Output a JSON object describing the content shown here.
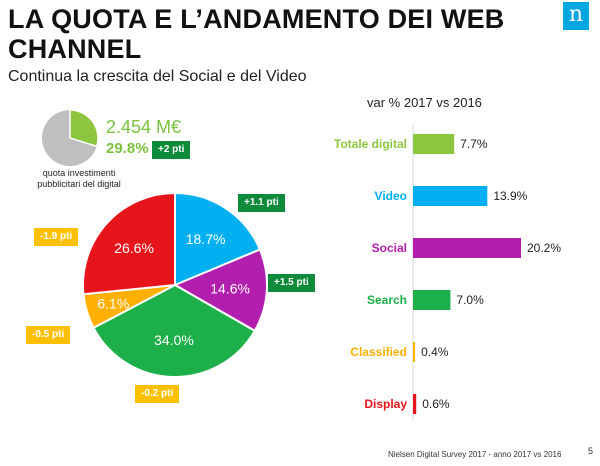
{
  "header": {
    "title": "LA QUOTA E L’ANDAMENTO DEI WEB CHANNEL",
    "subtitle": "Continua la crescita del Social e del Video",
    "logo_glyph": "n"
  },
  "digital_share": {
    "total_value": "2.454 M€",
    "share": "29.8%",
    "share_change": "+2 pti",
    "caption": "quota investimenti pubblicitari del digital",
    "share_fraction": 0.298,
    "colors": {
      "digital": "#8cc63f",
      "rest": "#bfbfbf"
    }
  },
  "footer": {
    "source": "Nielsen Digital Survey 2017 - anno 2017 vs 2016",
    "page": "5"
  },
  "chart_data": [
    {
      "type": "pie",
      "title": "",
      "slices": [
        {
          "name": "Video",
          "value": 18.7,
          "label": "18.7%",
          "change": "+1.1 pti",
          "color": "#00b0f0",
          "change_color": "green"
        },
        {
          "name": "Social",
          "value": 14.6,
          "label": "14.6%",
          "change": "+1.5 pti",
          "color": "#b21fae",
          "change_color": "green"
        },
        {
          "name": "Search",
          "value": 34.0,
          "label": "34.0%",
          "change": "-0.2 pti",
          "color": "#1daf49",
          "change_color": "orange"
        },
        {
          "name": "Classified",
          "value": 6.1,
          "label": "6.1%",
          "change": "-0.5 pti",
          "color": "#ffb000",
          "change_color": "orange"
        },
        {
          "name": "Display",
          "value": 26.6,
          "label": "26.6%",
          "change": "-1.9 pti",
          "color": "#e8141b",
          "change_color": "orange"
        }
      ]
    },
    {
      "type": "bar",
      "orientation": "horizontal",
      "title": "var % 2017 vs 2016",
      "categories": [
        "Totale digital",
        "Video",
        "Social",
        "Search",
        "Classified",
        "Display"
      ],
      "values": [
        7.7,
        13.9,
        20.2,
        7.0,
        0.4,
        0.6
      ],
      "value_labels": [
        "7.7%",
        "13.9%",
        "20.2%",
        "7.0%",
        "0.4%",
        "0.6%"
      ],
      "colors": [
        "#8cc63f",
        "#00b0f0",
        "#b21fae",
        "#1daf49",
        "#ffb000",
        "#e8141b"
      ],
      "xlim": [
        0,
        20.2
      ]
    }
  ]
}
